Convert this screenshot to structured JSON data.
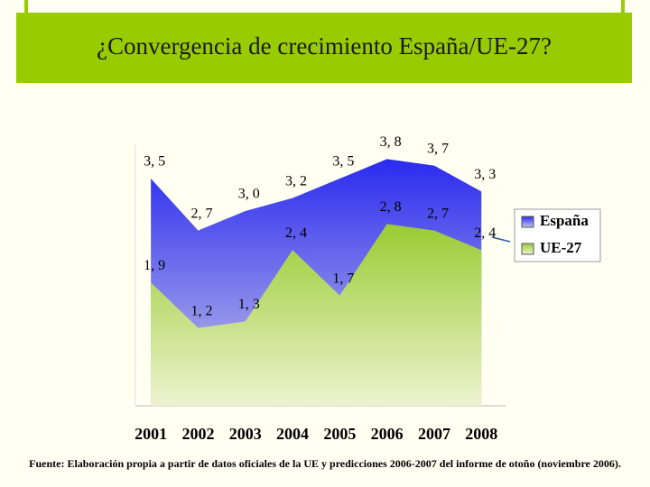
{
  "chart_data": {
    "type": "area",
    "title": "¿Convergencia de crecimiento España/UE-27?",
    "categories": [
      "2001",
      "2002",
      "2003",
      "2004",
      "2005",
      "2006",
      "2007",
      "2008"
    ],
    "series": [
      {
        "name": "España",
        "color": "#2a2af0",
        "values": [
          3.5,
          2.7,
          3.0,
          3.2,
          3.5,
          3.8,
          3.7,
          3.3
        ],
        "value_labels": [
          "3, 5",
          "2, 7",
          "3, 0",
          "3, 2",
          "3, 5",
          "3, 8",
          "3, 7",
          "3, 3"
        ]
      },
      {
        "name": "UE-27",
        "color": "#99cc33",
        "values": [
          1.9,
          1.2,
          1.3,
          2.4,
          1.7,
          2.8,
          2.7,
          2.4
        ],
        "value_labels": [
          "1, 9",
          "1, 2",
          "1, 3",
          "2, 4",
          "1, 7",
          "2, 8",
          "2, 7",
          "2, 4"
        ]
      }
    ],
    "ylim": [
      0,
      4
    ],
    "legend": "right",
    "source": "Fuente: Elaboración propia a partir de datos oficiales de la UE y predicciones 2006-2007 del informe de otoño (noviembre 2006)."
  }
}
